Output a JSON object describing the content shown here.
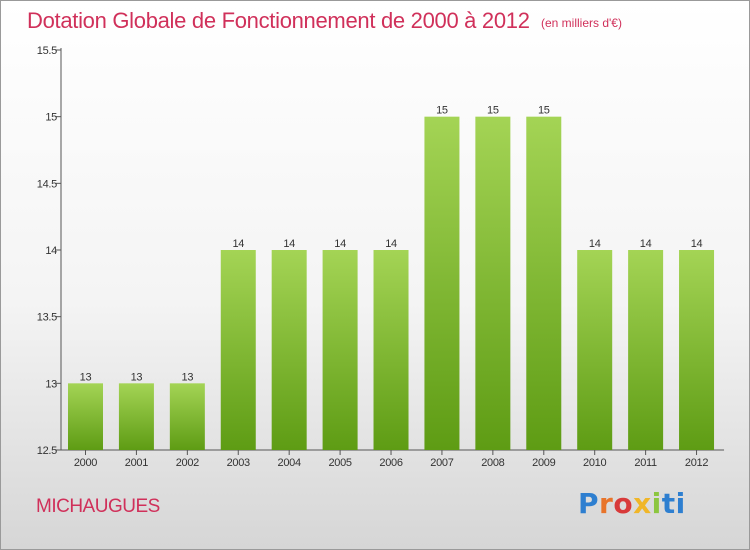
{
  "title": "Dotation Globale de Fonctionnement de 2000 à 2012",
  "unit": "(en milliers d'€)",
  "commune": "MICHAUGUES",
  "logo": {
    "text": "Proxiti",
    "parts": [
      "P",
      "r",
      "o",
      "x",
      "i",
      "ti"
    ]
  },
  "colors": {
    "bar_top": "#a4d455",
    "bar_bottom": "#5e9c14",
    "title": "#d0305a"
  },
  "chart_data": {
    "type": "bar",
    "title": "Dotation Globale de Fonctionnement de 2000 à 2012",
    "xlabel": "",
    "ylabel": "",
    "categories": [
      "2000",
      "2001",
      "2002",
      "2003",
      "2004",
      "2005",
      "2006",
      "2007",
      "2008",
      "2009",
      "2010",
      "2011",
      "2012"
    ],
    "values": [
      13,
      13,
      13,
      14,
      14,
      14,
      14,
      15,
      15,
      15,
      14,
      14,
      14
    ],
    "data_labels": [
      "13",
      "13",
      "13",
      "14",
      "14",
      "14",
      "14",
      "15",
      "15",
      "15",
      "14",
      "14",
      "14"
    ],
    "ylim": [
      12.5,
      15.5
    ],
    "yticks": [
      12.5,
      13,
      13.5,
      14,
      14.5,
      15,
      15.5
    ],
    "ytick_labels": [
      "12.5",
      "13",
      "13.5",
      "14",
      "14.5",
      "15",
      "15.5"
    ],
    "grid": false,
    "legend": "none"
  }
}
